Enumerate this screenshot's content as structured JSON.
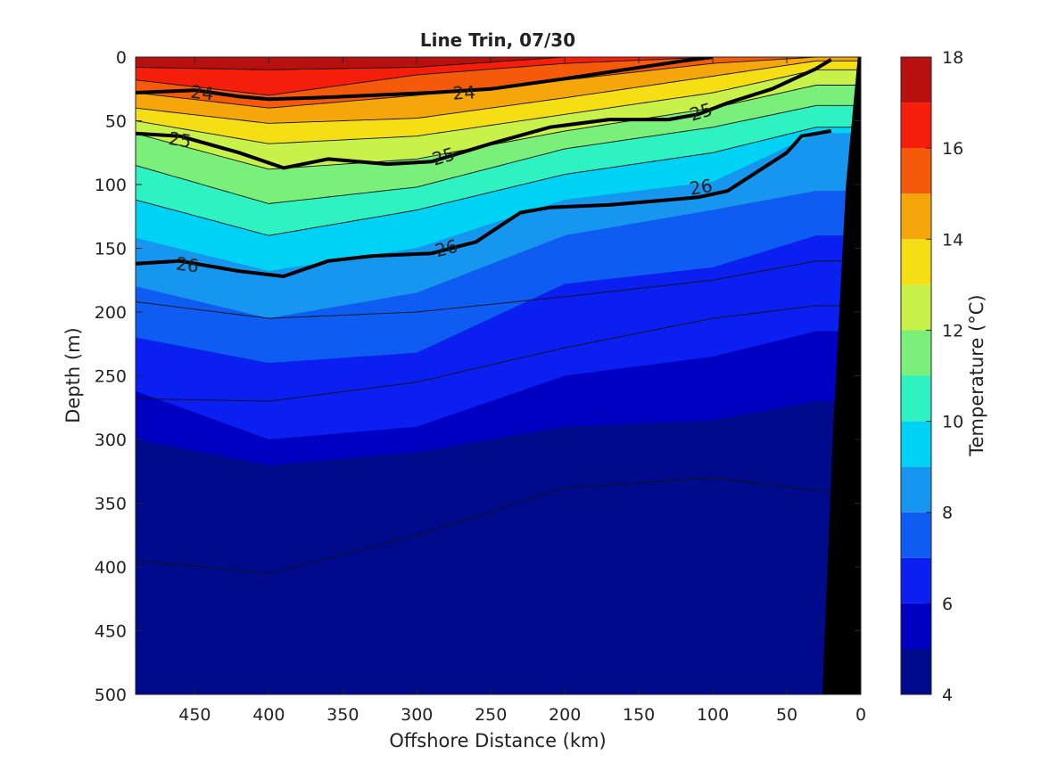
{
  "chart_data": {
    "type": "heatmap",
    "subtype": "filled-contour",
    "title": "Line Trin, 07/30",
    "xlabel": "Offshore Distance (km)",
    "ylabel": "Depth (m)",
    "xlim": [
      490,
      0
    ],
    "ylim": [
      0,
      500
    ],
    "x_reversed": true,
    "y_reversed": true,
    "x_ticks": [
      450,
      400,
      350,
      300,
      250,
      200,
      150,
      100,
      50,
      0
    ],
    "y_ticks": [
      0,
      50,
      100,
      150,
      200,
      250,
      300,
      350,
      400,
      450,
      500
    ],
    "grid": false,
    "colorbar": {
      "label": "Temperature (°C)",
      "range": [
        4,
        18
      ],
      "ticks": [
        4,
        6,
        8,
        10,
        12,
        14,
        16,
        18
      ],
      "levels": [
        4,
        5,
        6,
        7,
        8,
        9,
        10,
        11,
        12,
        13,
        14,
        15,
        16,
        17,
        18
      ],
      "colors": [
        "#000a8a",
        "#0000c2",
        "#0a1ff0",
        "#0e5cf2",
        "#1796f0",
        "#00d2f5",
        "#2ef2c2",
        "#7af07a",
        "#c8f24a",
        "#f5de14",
        "#f5a60a",
        "#f55a0a",
        "#f51e0a",
        "#b80f0f"
      ]
    },
    "temperature_profiles": {
      "x": [
        490,
        400,
        300,
        200,
        100,
        30
      ],
      "isotherm_depths_m": {
        "17": [
          8,
          10,
          8,
          0,
          0,
          0
        ],
        "16": [
          18,
          30,
          14,
          5,
          0,
          0
        ],
        "15": [
          28,
          40,
          30,
          18,
          5,
          0
        ],
        "14": [
          40,
          52,
          48,
          32,
          15,
          3
        ],
        "13": [
          50,
          68,
          62,
          45,
          28,
          10
        ],
        "12": [
          60,
          88,
          80,
          58,
          40,
          22
        ],
        "11": [
          85,
          115,
          102,
          72,
          55,
          38
        ],
        "10": [
          112,
          140,
          120,
          92,
          75,
          55
        ],
        "9": [
          142,
          168,
          150,
          112,
          98,
          60
        ],
        "8": [
          180,
          205,
          185,
          140,
          120,
          105
        ],
        "7": [
          220,
          240,
          232,
          178,
          165,
          140
        ],
        "6": [
          262,
          300,
          290,
          250,
          235,
          215
        ],
        "5": [
          300,
          320,
          310,
          290,
          285,
          270
        ],
        "4": [
          380,
          405,
          388,
          352,
          352,
          330
        ]
      },
      "thin_isopycnal_depths_m": {
        "a": [
          192,
          205,
          200,
          188,
          175,
          160
        ],
        "b": [
          268,
          270,
          255,
          228,
          205,
          195
        ],
        "c": [
          395,
          405,
          375,
          338,
          330,
          340
        ]
      }
    },
    "density_contours": [
      {
        "label": "24",
        "x": [
          490,
          470,
          450,
          420,
          400,
          370,
          330,
          290,
          250,
          200,
          160,
          120,
          100
        ],
        "depth": [
          28,
          27,
          26,
          31,
          33,
          32,
          30,
          28,
          25,
          17,
          10,
          3,
          0
        ]
      },
      {
        "label": "25",
        "x": [
          490,
          460,
          420,
          390,
          360,
          320,
          290,
          250,
          210,
          170,
          130,
          110,
          90,
          60,
          30,
          20
        ],
        "depth": [
          60,
          62,
          75,
          87,
          80,
          84,
          82,
          68,
          55,
          49,
          49,
          45,
          36,
          25,
          9,
          2
        ]
      },
      {
        "label": "26",
        "x": [
          490,
          460,
          420,
          390,
          360,
          330,
          290,
          260,
          230,
          210,
          170,
          130,
          110,
          90,
          70,
          50,
          40,
          20
        ],
        "depth": [
          162,
          160,
          168,
          172,
          160,
          156,
          154,
          145,
          122,
          118,
          116,
          112,
          110,
          105,
          90,
          75,
          62,
          58
        ]
      }
    ],
    "contour_labels": [
      {
        "text": "24",
        "x": 445,
        "depth": 28
      },
      {
        "text": "24",
        "x": 268,
        "depth": 28
      },
      {
        "text": "25",
        "x": 460,
        "depth": 65
      },
      {
        "text": "25",
        "x": 282,
        "depth": 78
      },
      {
        "text": "25",
        "x": 108,
        "depth": 43
      },
      {
        "text": "26",
        "x": 455,
        "depth": 163
      },
      {
        "text": "26",
        "x": 280,
        "depth": 150
      },
      {
        "text": "26",
        "x": 108,
        "depth": 102
      }
    ],
    "land_mask": {
      "color": "#000000",
      "edge": [
        {
          "depth": 0,
          "x": 2
        },
        {
          "depth": 100,
          "x": 10
        },
        {
          "depth": 300,
          "x": 19
        },
        {
          "depth": 500,
          "x": 26
        }
      ]
    }
  }
}
